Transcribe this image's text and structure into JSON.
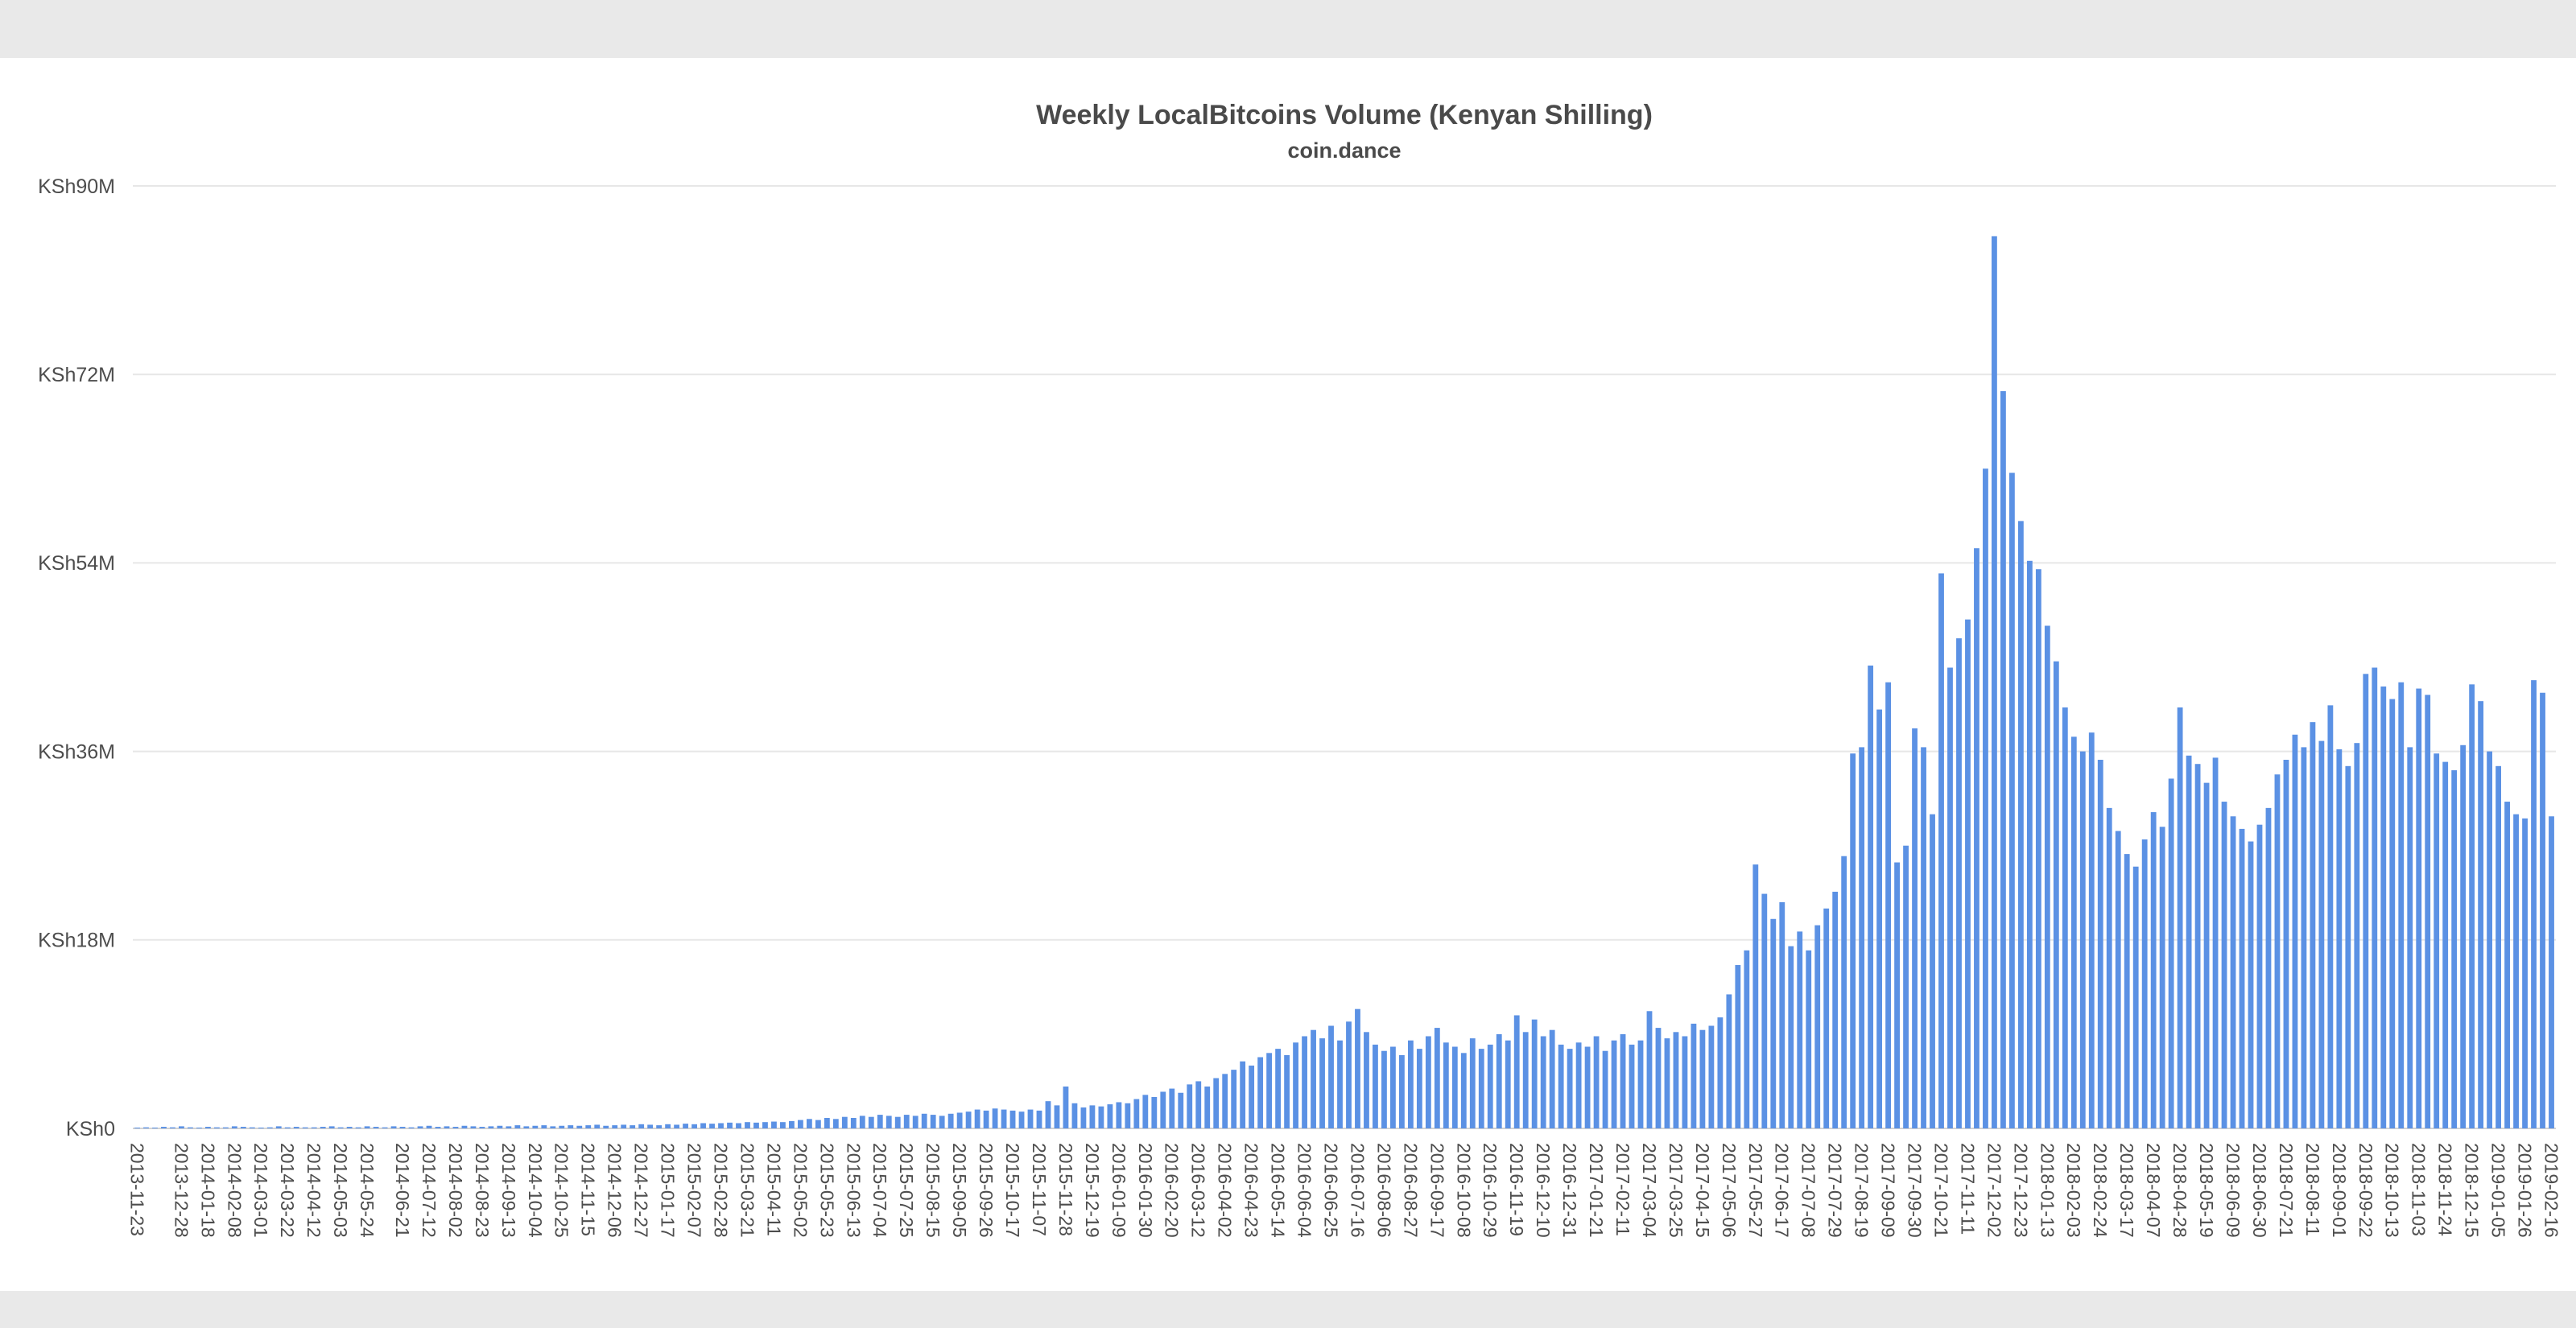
{
  "page": {
    "content_background": "#ffffff",
    "frame_color": "#e9e9e9"
  },
  "chart": {
    "title": "Weekly LocalBitcoins Volume (Kenyan Shilling)",
    "subtitle": "coin.dance"
  },
  "chart_data": {
    "type": "bar",
    "title": "Weekly LocalBitcoins Volume (Kenyan Shilling)",
    "subtitle": "coin.dance",
    "ylabel": "",
    "xlabel": "",
    "unit": "KSh millions (weekly volume)",
    "ylim": [
      0,
      90
    ],
    "grid": true,
    "bar_color": "#5b91e4",
    "grid_color": "#e7e7e7",
    "baseline_color": "#d2d2d2",
    "axis_text_color": "#4d4d4d",
    "start_date": "2013-11-23",
    "interval_days": 7,
    "y_ticks": [
      {
        "value": 0,
        "label": "KSh0"
      },
      {
        "value": 18,
        "label": "KSh18M"
      },
      {
        "value": 36,
        "label": "KSh36M"
      },
      {
        "value": 54,
        "label": "KSh54M"
      },
      {
        "value": 72,
        "label": "KSh72M"
      },
      {
        "value": 90,
        "label": "KSh90M"
      }
    ],
    "x_tick_labels": [
      "2013-11-23",
      "2013-12-28",
      "2014-01-18",
      "2014-02-08",
      "2014-03-01",
      "2014-03-22",
      "2014-04-12",
      "2014-05-03",
      "2014-05-24",
      "2014-06-21",
      "2014-07-12",
      "2014-08-02",
      "2014-08-23",
      "2014-09-13",
      "2014-10-04",
      "2014-10-25",
      "2014-11-15",
      "2014-12-06",
      "2014-12-27",
      "2015-01-17",
      "2015-02-07",
      "2015-02-28",
      "2015-03-21",
      "2015-04-11",
      "2015-05-02",
      "2015-05-23",
      "2015-06-13",
      "2015-07-04",
      "2015-07-25",
      "2015-08-15",
      "2015-09-05",
      "2015-09-26",
      "2015-10-17",
      "2015-11-07",
      "2015-11-28",
      "2015-12-19",
      "2016-01-09",
      "2016-01-30",
      "2016-02-20",
      "2016-03-12",
      "2016-04-02",
      "2016-04-23",
      "2016-05-14",
      "2016-06-04",
      "2016-06-25",
      "2016-07-16",
      "2016-08-06",
      "2016-08-27",
      "2016-09-17",
      "2016-10-08",
      "2016-10-29",
      "2016-11-19",
      "2016-12-10",
      "2016-12-31",
      "2017-01-21",
      "2017-02-11",
      "2017-03-04",
      "2017-03-25",
      "2017-04-15",
      "2017-05-06",
      "2017-05-27",
      "2017-06-17",
      "2017-07-08",
      "2017-07-29",
      "2017-08-19",
      "2017-09-09",
      "2017-09-30",
      "2017-10-21",
      "2017-11-11",
      "2017-12-02",
      "2017-12-23",
      "2018-01-13",
      "2018-02-03",
      "2018-02-24",
      "2018-03-17",
      "2018-04-07",
      "2018-04-28",
      "2018-05-19",
      "2018-06-09",
      "2018-06-30",
      "2018-07-21",
      "2018-08-11",
      "2018-09-01",
      "2018-09-22",
      "2018-10-13",
      "2018-11-03",
      "2018-11-24",
      "2018-12-15",
      "2019-01-05",
      "2019-01-26",
      "2019-02-16"
    ],
    "values": [
      0.05,
      0.1,
      0.05,
      0.15,
      0.1,
      0.2,
      0.1,
      0.05,
      0.15,
      0.1,
      0.1,
      0.2,
      0.15,
      0.1,
      0.05,
      0.1,
      0.2,
      0.1,
      0.15,
      0.1,
      0.1,
      0.15,
      0.2,
      0.1,
      0.15,
      0.1,
      0.2,
      0.15,
      0.1,
      0.2,
      0.15,
      0.1,
      0.2,
      0.25,
      0.15,
      0.2,
      0.15,
      0.25,
      0.2,
      0.15,
      0.2,
      0.25,
      0.2,
      0.3,
      0.2,
      0.25,
      0.3,
      0.2,
      0.25,
      0.3,
      0.25,
      0.3,
      0.35,
      0.25,
      0.3,
      0.35,
      0.3,
      0.4,
      0.35,
      0.3,
      0.4,
      0.35,
      0.45,
      0.4,
      0.5,
      0.45,
      0.5,
      0.55,
      0.5,
      0.6,
      0.55,
      0.6,
      0.65,
      0.6,
      0.7,
      0.8,
      0.9,
      0.8,
      1.0,
      0.9,
      1.1,
      1.0,
      1.2,
      1.1,
      1.3,
      1.2,
      1.1,
      1.3,
      1.2,
      1.4,
      1.3,
      1.2,
      1.4,
      1.5,
      1.6,
      1.8,
      1.7,
      1.9,
      1.8,
      1.7,
      1.6,
      1.8,
      1.7,
      2.6,
      2.2,
      4.0,
      2.4,
      2.0,
      2.2,
      2.1,
      2.3,
      2.5,
      2.4,
      2.8,
      3.2,
      3.0,
      3.5,
      3.8,
      3.4,
      4.2,
      4.5,
      4.0,
      4.8,
      5.2,
      5.6,
      6.4,
      6.0,
      6.8,
      7.2,
      7.6,
      7.0,
      8.2,
      8.8,
      9.4,
      8.6,
      9.8,
      8.4,
      10.2,
      11.4,
      9.2,
      8.0,
      7.4,
      7.8,
      7.0,
      8.4,
      7.6,
      8.8,
      9.6,
      8.2,
      7.8,
      7.2,
      8.6,
      7.6,
      8.0,
      9.0,
      8.4,
      10.8,
      9.2,
      10.4,
      8.8,
      9.4,
      8.0,
      7.6,
      8.2,
      7.8,
      8.8,
      7.4,
      8.4,
      9.0,
      8.0,
      8.4,
      11.2,
      9.6,
      8.6,
      9.2,
      8.8,
      10.0,
      9.4,
      9.8,
      10.6,
      12.8,
      15.6,
      17.0,
      25.2,
      22.4,
      20.0,
      21.6,
      17.4,
      18.8,
      17.0,
      19.4,
      21.0,
      22.6,
      26.0,
      35.8,
      36.4,
      44.2,
      40.0,
      42.6,
      25.4,
      27.0,
      38.2,
      36.4,
      30.0,
      53.0,
      44.0,
      46.8,
      48.6,
      55.4,
      63.0,
      85.2,
      70.4,
      62.6,
      58.0,
      54.2,
      53.4,
      48.0,
      44.6,
      40.2,
      37.4,
      36.0,
      37.8,
      35.2,
      30.6,
      28.4,
      26.2,
      25.0,
      27.6,
      30.2,
      28.8,
      33.4,
      40.2,
      35.6,
      34.8,
      33.0,
      35.4,
      31.2,
      29.8,
      28.6,
      27.4,
      29.0,
      30.6,
      33.8,
      35.2,
      37.6,
      36.4,
      38.8,
      37.0,
      40.4,
      36.2,
      34.6,
      36.8,
      43.4,
      44.0,
      42.2,
      41.0,
      42.6,
      36.4,
      42.0,
      41.4,
      35.8,
      35.0,
      34.2,
      36.6,
      42.4,
      40.8,
      36.0,
      34.6,
      31.2,
      30.0,
      29.6,
      42.8,
      41.6,
      29.8
    ]
  }
}
